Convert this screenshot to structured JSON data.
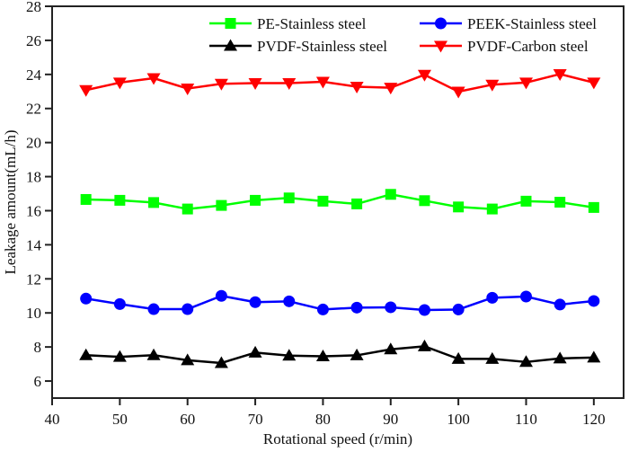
{
  "chart_data": {
    "type": "line",
    "title": "",
    "xlabel": "Rotational speed (r/min)",
    "ylabel": "Leakage amount(mL/h)",
    "xlim": [
      40,
      124.4
    ],
    "ylim": [
      5,
      28
    ],
    "xticks": [
      40,
      50,
      60,
      70,
      80,
      90,
      100,
      110,
      120
    ],
    "yticks": [
      6,
      8,
      10,
      12,
      14,
      16,
      18,
      20,
      22,
      24,
      26,
      28
    ],
    "grid": false,
    "legend": {
      "placement": "top-right",
      "columns": 2
    },
    "x": [
      45,
      50,
      55,
      60,
      65,
      70,
      75,
      80,
      85,
      90,
      95,
      100,
      105,
      110,
      115,
      120
    ],
    "series": [
      {
        "name": "PE-Stainless steel",
        "color": "#00ff00",
        "marker": "square",
        "values": [
          16.66,
          16.61,
          16.48,
          16.1,
          16.31,
          16.61,
          16.75,
          16.56,
          16.4,
          16.96,
          16.59,
          16.22,
          16.1,
          16.56,
          16.5,
          16.19
        ]
      },
      {
        "name": "PEEK-Stainless steel",
        "color": "#0000ff",
        "marker": "circle",
        "values": [
          10.84,
          10.52,
          10.22,
          10.22,
          11.0,
          10.63,
          10.68,
          10.2,
          10.31,
          10.33,
          10.17,
          10.2,
          10.89,
          10.96,
          10.49,
          10.7
        ]
      },
      {
        "name": "PVDF-Stainless steel",
        "color": "#000000",
        "marker": "triangle-up",
        "values": [
          7.52,
          7.42,
          7.52,
          7.22,
          7.06,
          7.67,
          7.49,
          7.45,
          7.51,
          7.86,
          8.04,
          7.3,
          7.3,
          7.12,
          7.33,
          7.38
        ]
      },
      {
        "name": "PVDF-Carbon steel",
        "color": "#ff0000",
        "marker": "triangle-down",
        "values": [
          23.08,
          23.52,
          23.78,
          23.17,
          23.45,
          23.49,
          23.49,
          23.57,
          23.28,
          23.22,
          23.98,
          22.99,
          23.4,
          23.52,
          24.02,
          23.52
        ]
      }
    ]
  }
}
